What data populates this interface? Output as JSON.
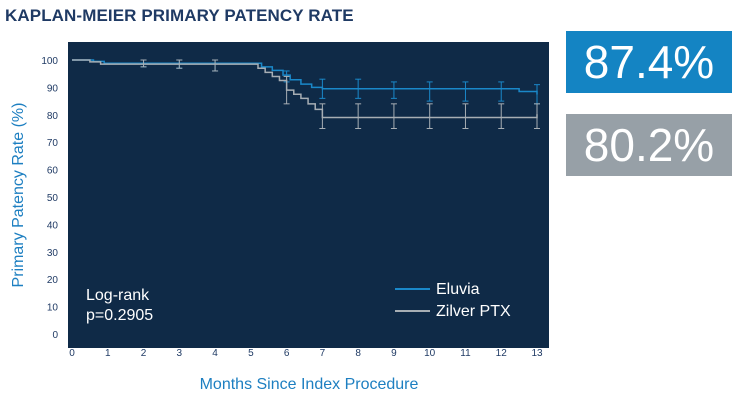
{
  "title": "KAPLAN-MEIER PRIMARY PATENCY RATE",
  "stats": [
    {
      "value": "87.4%",
      "color": "#1484c3"
    },
    {
      "value": "80.2%",
      "color": "#97a0a7"
    }
  ],
  "chart_data": {
    "type": "line",
    "xlabel": "Months Since Index Procedure",
    "ylabel": "Primary Patency Rate (%)",
    "xlim": [
      0,
      13
    ],
    "ylim": [
      0,
      100
    ],
    "x_ticks": [
      0,
      1,
      2,
      3,
      4,
      5,
      6,
      7,
      8,
      9,
      10,
      11,
      12,
      13
    ],
    "y_ticks": [
      0,
      10,
      20,
      30,
      40,
      50,
      60,
      70,
      80,
      90,
      100
    ],
    "plot_background": "#0f2a47",
    "annotation": [
      "Log-rank",
      "p=0.2905"
    ],
    "legend_position": "bottom-right",
    "series": [
      {
        "name": "Eluvia",
        "color": "#1a88c9",
        "x": [
          0,
          0.6,
          0.9,
          5.0,
          5.3,
          5.6,
          5.9,
          6.1,
          6.4,
          6.7,
          7.0,
          12.5,
          13.0
        ],
        "y": [
          100,
          99.5,
          98.8,
          98.8,
          97.5,
          96.2,
          94.5,
          92.8,
          91.2,
          90.0,
          89.5,
          88.5,
          87.4
        ],
        "error_x": [
          2,
          3,
          4,
          6,
          7,
          8,
          9,
          10,
          11,
          12,
          13
        ],
        "error_lo": [
          97.5,
          97,
          96,
          92,
          86,
          86,
          86,
          85,
          85,
          85,
          84
        ],
        "error_hi": [
          100,
          100,
          100,
          96,
          93,
          93,
          92,
          92,
          92,
          92,
          91
        ]
      },
      {
        "name": "Zilver PTX",
        "color": "#a7aeb4",
        "x": [
          0,
          0.5,
          0.8,
          5.0,
          5.2,
          5.4,
          5.6,
          5.8,
          6.0,
          6.2,
          6.4,
          6.6,
          6.8,
          7.0,
          13.0
        ],
        "y": [
          100,
          99.3,
          98.5,
          98.5,
          97,
          95.5,
          94,
          92.5,
          89,
          87.5,
          86,
          84,
          82,
          79,
          80.2
        ],
        "error_x": [
          2,
          3,
          4,
          6,
          7,
          8,
          9,
          10,
          11,
          12,
          13
        ],
        "error_lo": [
          97.5,
          97,
          96,
          84,
          75,
          75,
          75,
          75,
          75,
          75,
          75
        ],
        "error_hi": [
          100,
          100,
          100,
          94,
          84,
          84,
          84,
          84,
          84,
          84,
          84
        ]
      }
    ]
  }
}
